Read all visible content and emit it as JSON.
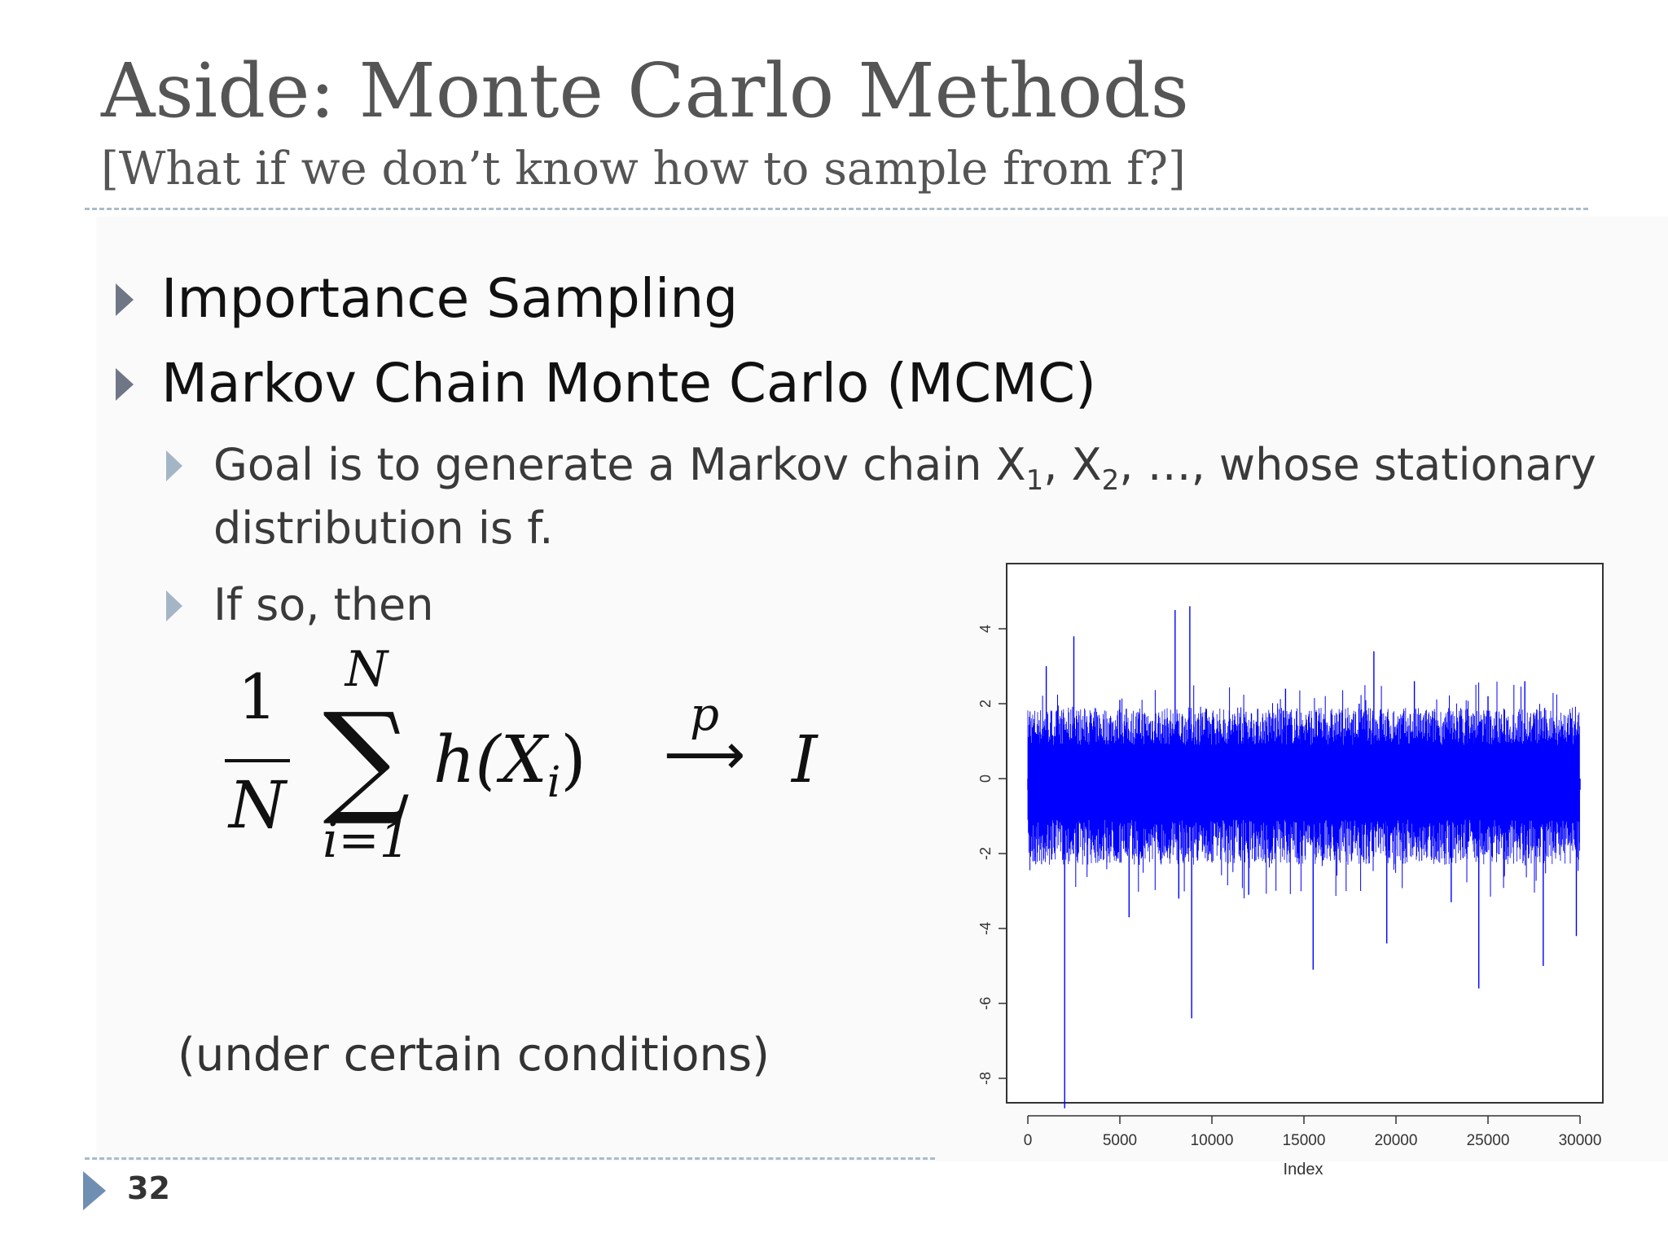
{
  "slide": {
    "title": "Aside: Monte Carlo Methods",
    "subtitle": "[What if we don’t know how to sample from f?]",
    "page_number": "32"
  },
  "bullets": {
    "item1": "Importance Sampling",
    "item2": "Markov Chain Monte Carlo (MCMC)",
    "sub1_part1": "Goal is to generate a Markov chain X",
    "sub1_sub1": "1",
    "sub1_part2": ", X",
    "sub1_sub2": "2",
    "sub1_part3": ", …, whose stationary",
    "sub1_line2": "distribution is f.",
    "sub2": "If so, then"
  },
  "formula": {
    "numerator": "1",
    "denominator": "N",
    "sum_upper": "N",
    "sum_symbol": "∑",
    "sum_lower": "i=1",
    "term": "h(X",
    "term_sub": "i",
    "term_close": ")",
    "arrow_label": "p",
    "arrow": "⟶",
    "limit": "I"
  },
  "condition_note": "(under certain conditions)",
  "colors": {
    "trace": "#0000ff",
    "bullet_primary": "#6f7686",
    "bullet_secondary": "#a4b6c6",
    "divider": "#a9bccb"
  },
  "chart_data": {
    "type": "line",
    "xlabel": "Index",
    "ylabel": "",
    "xlim": [
      0,
      30000
    ],
    "ylim": [
      -9,
      5
    ],
    "x_ticks": [
      "0",
      "5000",
      "10000",
      "15000",
      "20000",
      "25000",
      "30000"
    ],
    "x_tick_values": [
      0,
      5000,
      10000,
      15000,
      20000,
      25000,
      30000
    ],
    "y_ticks": [
      "-8",
      "-6",
      "-4",
      "-2",
      "0",
      "2",
      "4"
    ],
    "y_tick_values": [
      -8,
      -6,
      -4,
      -2,
      0,
      2,
      4
    ],
    "series": [
      {
        "values_description_points": [
          [
            0,
            -0.3
          ],
          [
            1000,
            3.0
          ],
          [
            1800,
            -0.5
          ],
          [
            2000,
            -8.8
          ],
          [
            2500,
            3.8
          ],
          [
            3000,
            -0.2
          ],
          [
            5000,
            2.1
          ],
          [
            5500,
            -3.7
          ],
          [
            8000,
            4.5
          ],
          [
            8200,
            -3.2
          ],
          [
            8800,
            4.6
          ],
          [
            8900,
            -6.4
          ],
          [
            12000,
            -3.1
          ],
          [
            14000,
            2.4
          ],
          [
            15500,
            -5.1
          ],
          [
            18000,
            2.0
          ],
          [
            18800,
            3.4
          ],
          [
            19500,
            -4.4
          ],
          [
            21000,
            2.6
          ],
          [
            23000,
            -3.3
          ],
          [
            24500,
            -5.6
          ],
          [
            25000,
            2.2
          ],
          [
            27000,
            2.6
          ],
          [
            28000,
            -5.0
          ],
          [
            29500,
            1.6
          ],
          [
            29800,
            -4.2
          ],
          [
            30000,
            -0.3
          ]
        ]
      }
    ],
    "band": {
      "lower": -1.1,
      "upper": 0.9
    },
    "grid": false
  }
}
